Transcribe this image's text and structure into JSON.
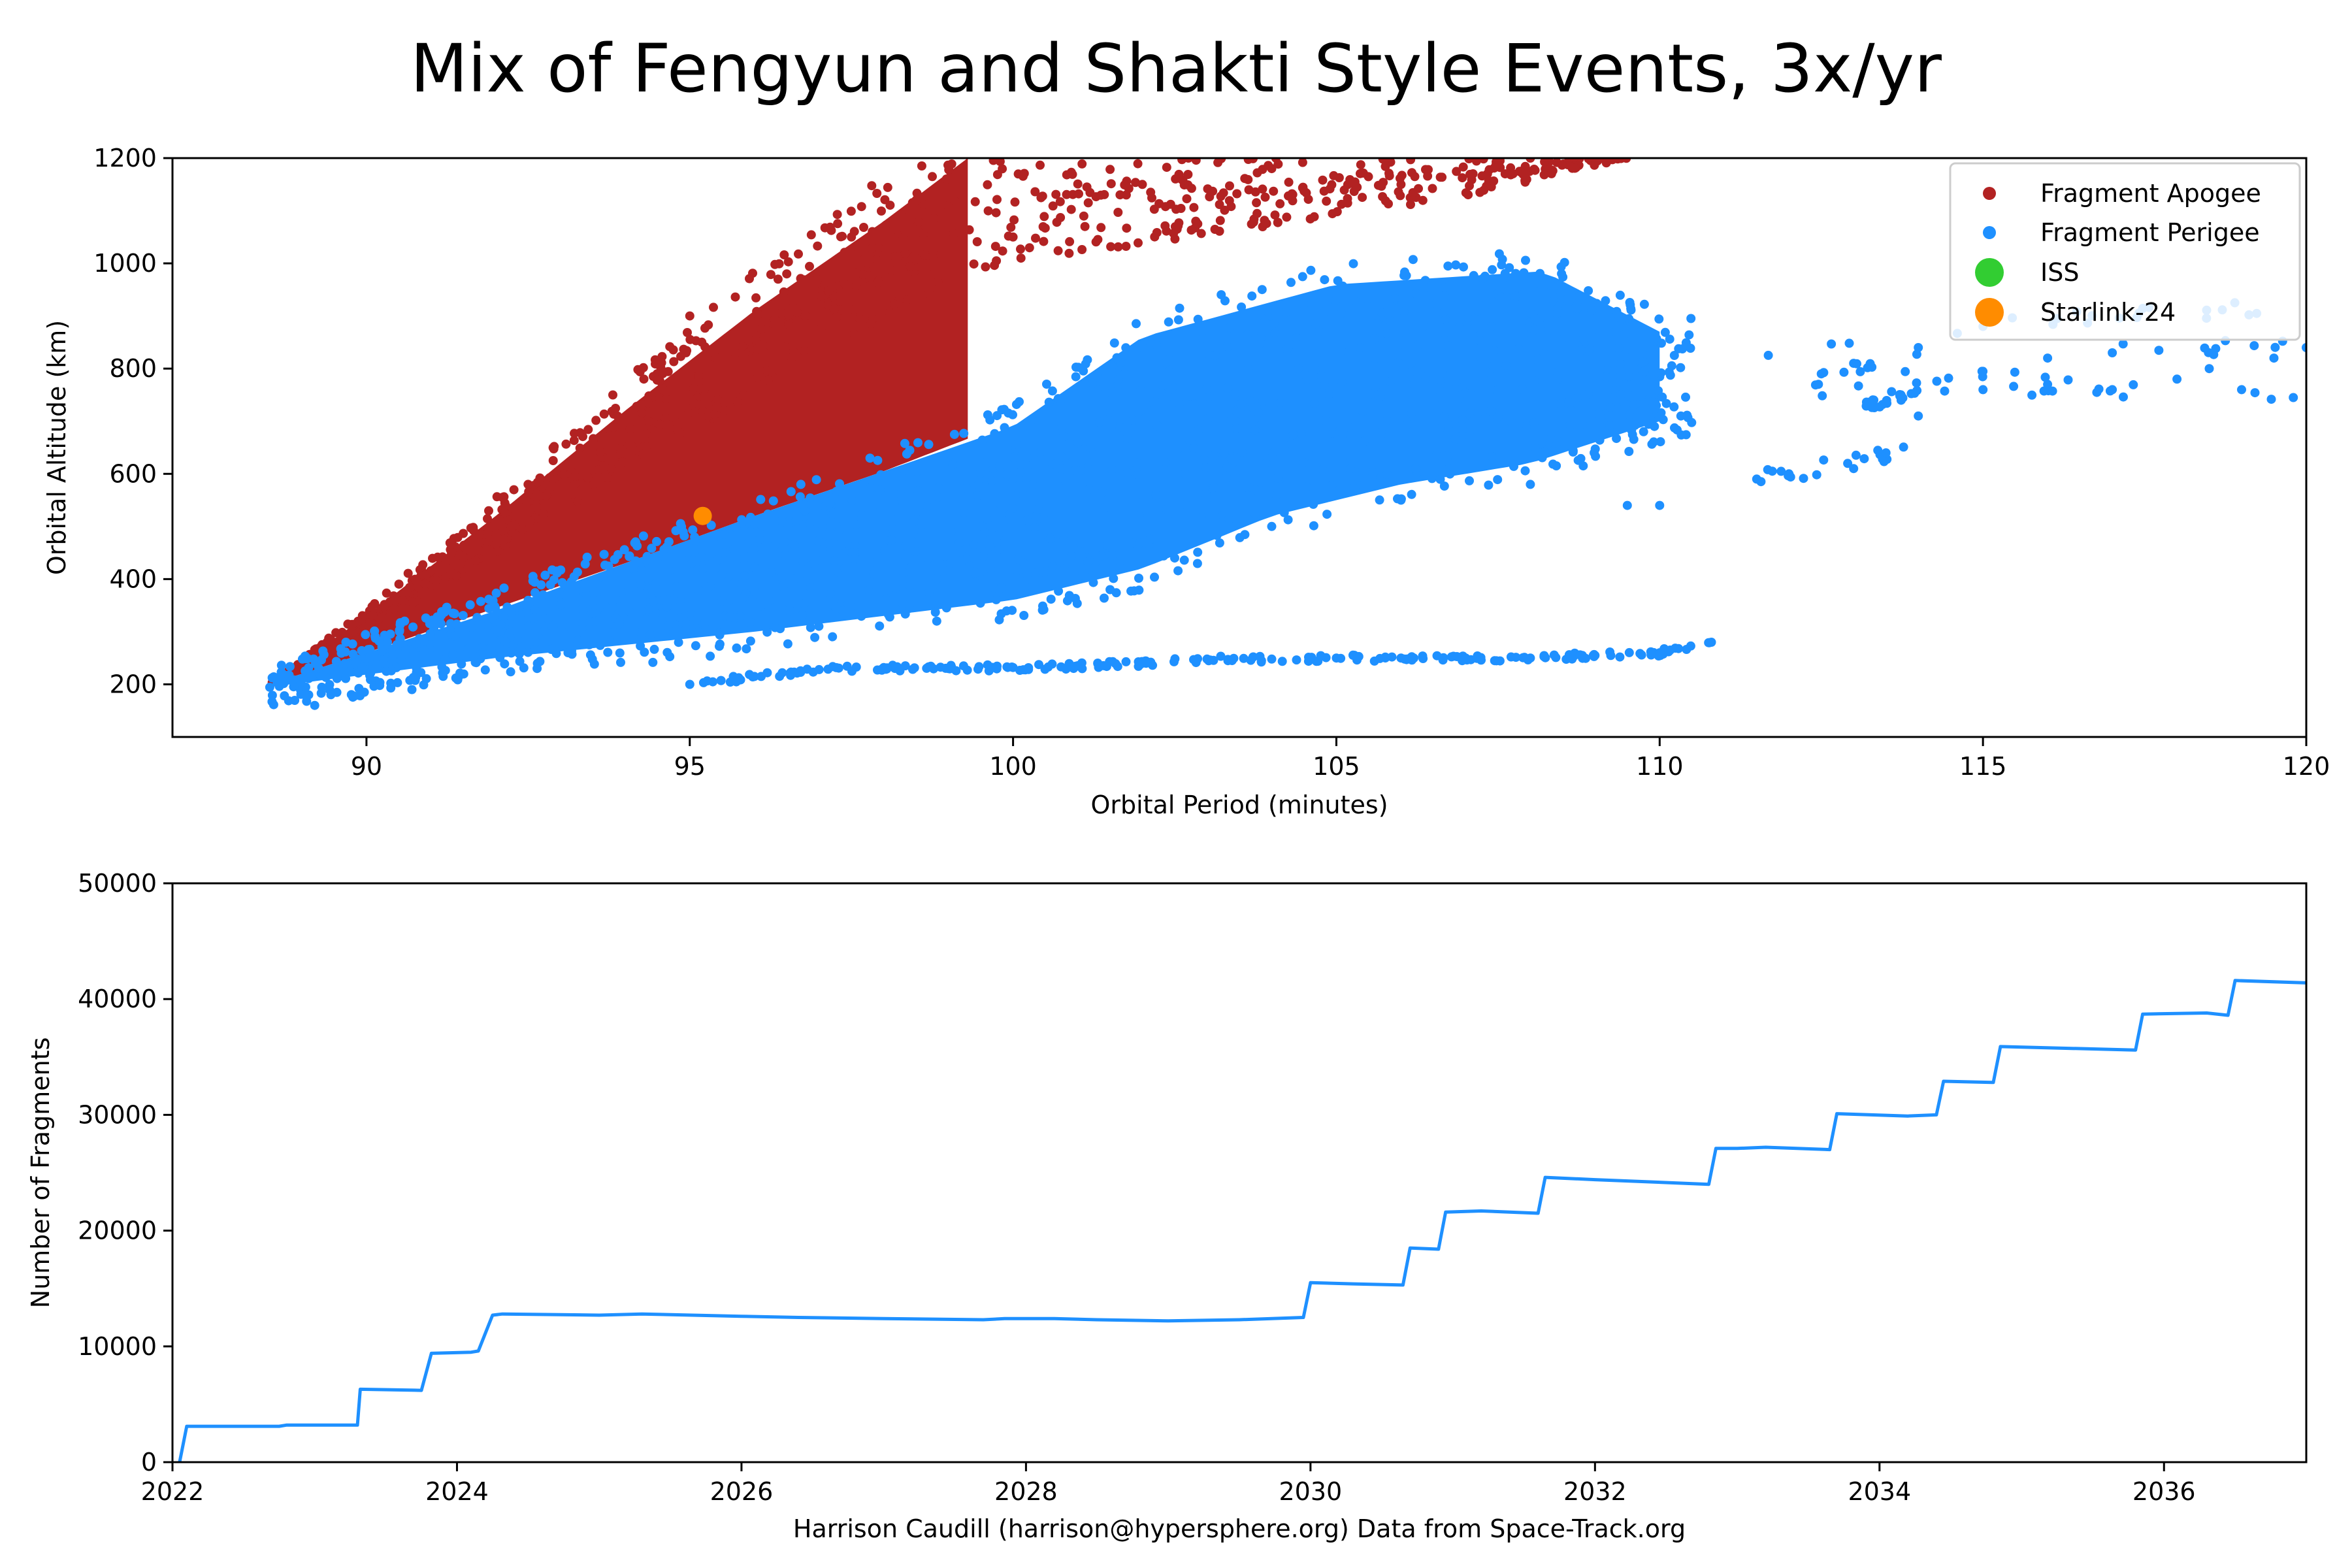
{
  "figure": {
    "title": "Mix of Fengyun and Shakti Style Events, 3x/yr",
    "credit": "Harrison Caudill (harrison@hypersphere.org) Data from Space-Track.org"
  },
  "colors": {
    "apogee": "#b22222",
    "perigee": "#1e90ff",
    "iss": "#32cd32",
    "starlink": "#ff8c00",
    "line": "#1e90ff"
  },
  "chart_data": [
    {
      "type": "scatter",
      "xlabel": "Orbital Period (minutes)",
      "ylabel": "Orbital Altitude (km)",
      "xlim": [
        87,
        120
      ],
      "ylim": [
        100,
        1200
      ],
      "xticks": [
        90,
        95,
        100,
        105,
        110,
        115,
        120
      ],
      "yticks": [
        200,
        400,
        600,
        800,
        1000,
        1200
      ],
      "legend_position": "top-right",
      "legend": [
        "Fragment Apogee",
        "Fragment Perigee",
        "ISS",
        "Starlink-24"
      ],
      "series": [
        {
          "name": "Fragment Apogee",
          "marker": "small dot",
          "envelope_upper": [
            [
              88.5,
              200
            ],
            [
              90,
              330
            ],
            [
              92,
              520
            ],
            [
              94,
              720
            ],
            [
              96,
              910
            ],
            [
              98,
              1080
            ],
            [
              99.3,
              1200
            ]
          ],
          "envelope_lower": [
            [
              88.5,
              200
            ],
            [
              90,
              260
            ],
            [
              92,
              345
            ],
            [
              94,
              430
            ],
            [
              96,
              520
            ],
            [
              98,
              605
            ],
            [
              100,
              700
            ],
            [
              102,
              790
            ],
            [
              104,
              880
            ],
            [
              106,
              965
            ],
            [
              107.5,
              1050
            ],
            [
              108.5,
              1130
            ],
            [
              109.5,
              1200
            ]
          ],
          "representative_points": [
            [
              95,
              900
            ],
            [
              96.5,
              980
            ],
            [
              97.5,
              1050
            ],
            [
              98.5,
              1120
            ],
            [
              92.5,
              580
            ],
            [
              93.5,
              660
            ],
            [
              100,
              1050
            ],
            [
              102,
              1150
            ],
            [
              104,
              1180
            ],
            [
              106,
              1150
            ],
            [
              108,
              1200
            ]
          ]
        },
        {
          "name": "Fragment Perigee",
          "marker": "small dot",
          "envelope_upper": [
            [
              88.5,
              200
            ],
            [
              92,
              340
            ],
            [
              96,
              520
            ],
            [
              100,
              690
            ],
            [
              102,
              860
            ],
            [
              105,
              960
            ],
            [
              108.2,
              985
            ],
            [
              110,
              870
            ],
            [
              115,
              880
            ],
            [
              120,
              840
            ]
          ],
          "envelope_lower": [
            [
              88.5,
              195
            ],
            [
              92,
              250
            ],
            [
              96,
              300
            ],
            [
              100,
              360
            ],
            [
              102,
              420
            ],
            [
              104,
              520
            ],
            [
              106,
              580
            ],
            [
              108,
              620
            ],
            [
              110,
              700
            ]
          ],
          "representative_points": [
            [
              89.2,
              160
            ],
            [
              95,
              200
            ],
            [
              96,
              215
            ],
            [
              97,
              228
            ],
            [
              98,
              232
            ],
            [
              99,
              230
            ],
            [
              100,
              232
            ],
            [
              101,
              235
            ],
            [
              102,
              240
            ],
            [
              103,
              248
            ],
            [
              104,
              248
            ],
            [
              105,
              250
            ],
            [
              106,
              250
            ],
            [
              107,
              250
            ],
            [
              108,
              250
            ],
            [
              109,
              255
            ],
            [
              110,
              260
            ],
            [
              110.8,
              280
            ],
            [
              100.5,
              430
            ],
            [
              101.5,
              380
            ],
            [
              102.5,
              440
            ],
            [
              104,
              500
            ],
            [
              106,
              550
            ],
            [
              108,
              580
            ],
            [
              109.5,
              540
            ],
            [
              110,
              540
            ],
            [
              111.5,
              590
            ],
            [
              112,
              600
            ],
            [
              113,
              610
            ],
            [
              113.5,
              640
            ],
            [
              114,
              710
            ],
            [
              112.5,
              790
            ],
            [
              113,
              810
            ],
            [
              114,
              840
            ],
            [
              115,
              760
            ],
            [
              116,
              770
            ],
            [
              117,
              760
            ],
            [
              118,
              780
            ],
            [
              119,
              760
            ],
            [
              119.8,
              745
            ],
            [
              115,
              880
            ],
            [
              116,
              820
            ],
            [
              117,
              830
            ],
            [
              118.5,
              800
            ],
            [
              119.5,
              820
            ],
            [
              120,
              840
            ]
          ]
        },
        {
          "name": "ISS",
          "marker": "large dot",
          "points": []
        },
        {
          "name": "Starlink-24",
          "marker": "large dot",
          "points": [
            [
              95.2,
              520
            ]
          ]
        }
      ]
    },
    {
      "type": "line",
      "xlabel": "",
      "ylabel": "Number of Fragments",
      "xlim": [
        2022,
        2037
      ],
      "ylim": [
        0,
        50000
      ],
      "xticks": [
        "2022",
        "2024",
        "2026",
        "2028",
        "2030",
        "2032",
        "2034",
        "2036"
      ],
      "yticks": [
        0,
        10000,
        20000,
        30000,
        40000,
        50000
      ],
      "series": [
        {
          "name": "",
          "x": [
            2022.05,
            2022.1,
            2022.75,
            2022.8,
            2023.3,
            2023.32,
            2023.75,
            2023.82,
            2024.1,
            2024.15,
            2024.25,
            2024.32,
            2025.0,
            2025.3,
            2026.0,
            2026.4,
            2027.0,
            2027.7,
            2027.85,
            2028.2,
            2028.5,
            2029.0,
            2029.5,
            2029.95,
            2030.0,
            2030.3,
            2030.65,
            2030.7,
            2030.9,
            2030.95,
            2031.2,
            2031.6,
            2031.65,
            2032.0,
            2032.8,
            2032.85,
            2033.0,
            2033.2,
            2033.65,
            2033.7,
            2034.2,
            2034.4,
            2034.45,
            2034.8,
            2034.85,
            2035.8,
            2035.85,
            2036.3,
            2036.45,
            2036.5,
            2037.0
          ],
          "values": [
            0,
            3100,
            3100,
            3200,
            3200,
            6300,
            6200,
            9400,
            9500,
            9600,
            12700,
            12800,
            12700,
            12800,
            12600,
            12500,
            12400,
            12300,
            12400,
            12400,
            12300,
            12200,
            12300,
            12500,
            15500,
            15400,
            15300,
            18500,
            18400,
            21600,
            21700,
            21500,
            24600,
            24400,
            24000,
            27100,
            27100,
            27200,
            27000,
            30100,
            29900,
            30000,
            32900,
            32800,
            35900,
            35600,
            38700,
            38800,
            38600,
            41600,
            41400
          ]
        }
      ]
    }
  ]
}
